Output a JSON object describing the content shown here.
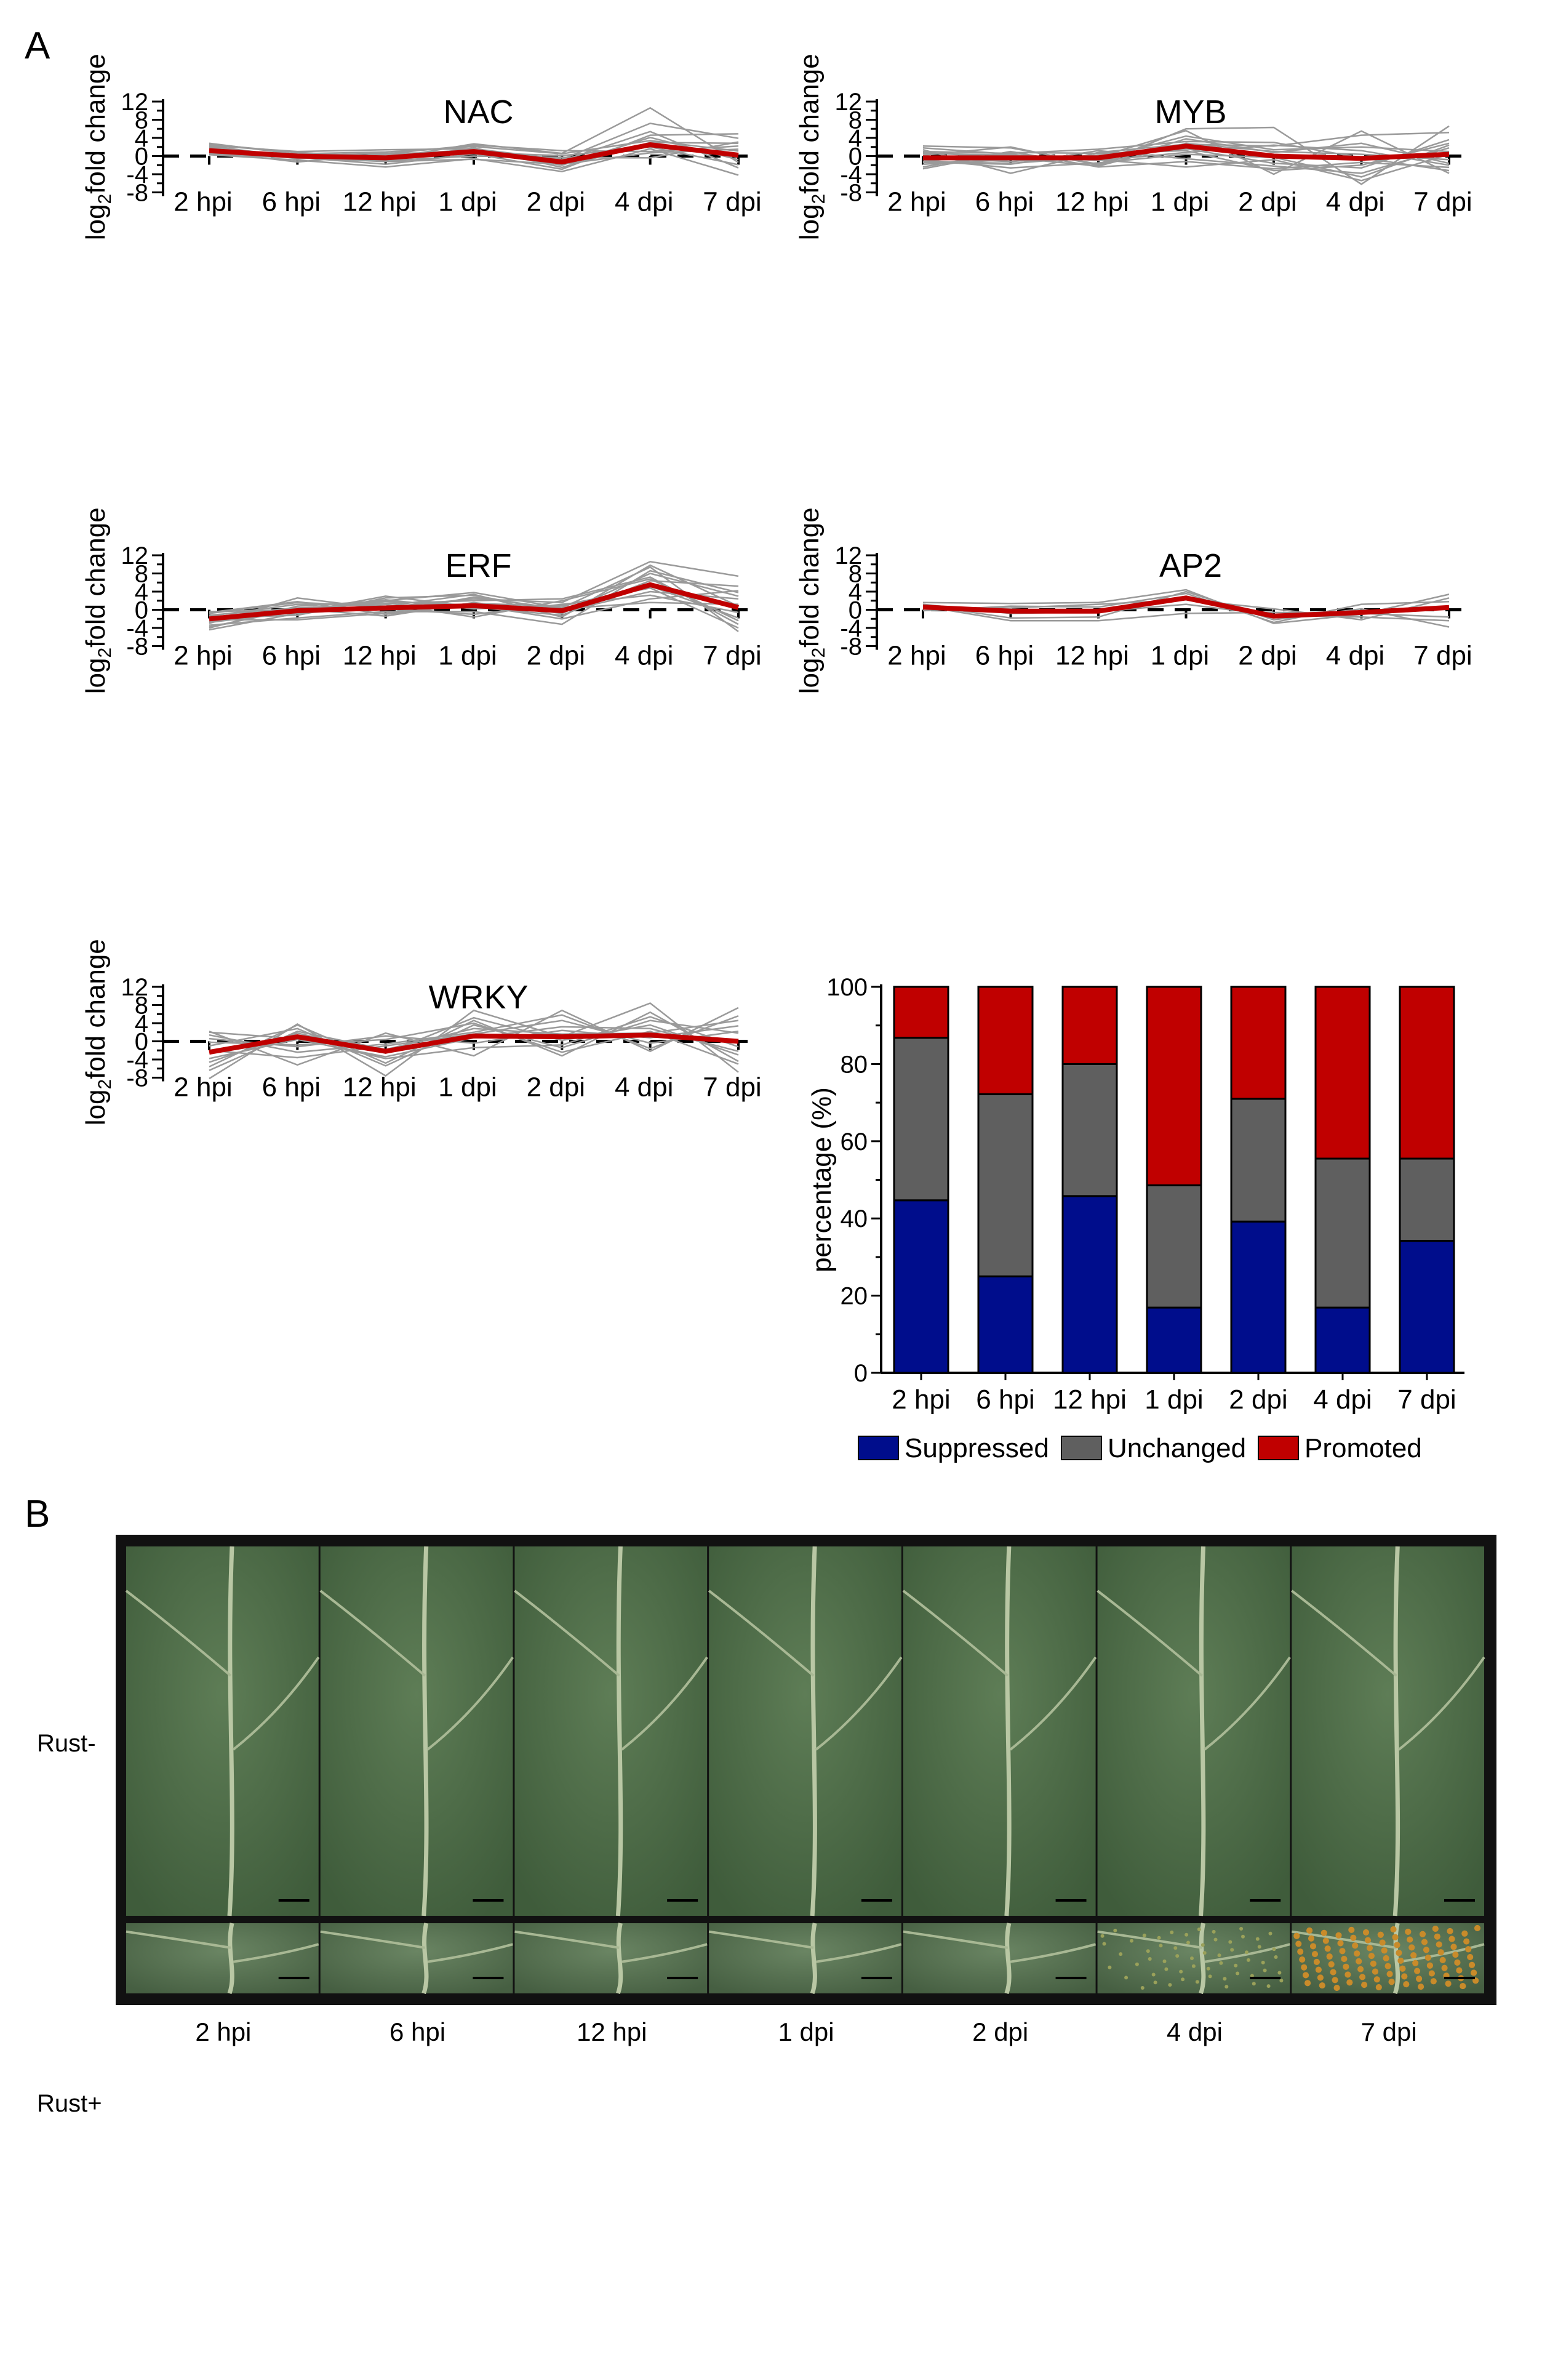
{
  "panel_a_label": "A",
  "panel_b_label": "B",
  "chart_data": [
    {
      "type": "line",
      "title": "NAC",
      "categories": [
        "2 hpi",
        "6 hpi",
        "12 hpi",
        "1 dpi",
        "2 dpi",
        "4 dpi",
        "7 dpi"
      ],
      "ylabel": "log2fold change",
      "ylabel_main": "log",
      "ylabel_sub": "2",
      "ylabel_rest": "fold change",
      "yticks": [
        "12",
        "8",
        "4",
        "0",
        "-4",
        "-8"
      ],
      "ylim": [
        -8,
        12
      ],
      "mean_series": {
        "name": "mean",
        "color": "#c00000",
        "values": [
          1.2,
          0.0,
          -0.4,
          1.0,
          -1.3,
          2.5,
          0.2
        ]
      },
      "series": [
        [
          2.8,
          0.4,
          -0.6,
          2.7,
          0.6,
          10.6,
          -1.4
        ],
        [
          2.3,
          1.0,
          1.4,
          1.6,
          -0.7,
          7.2,
          3.9
        ],
        [
          1.8,
          -0.3,
          -1.8,
          0.5,
          -2.9,
          4.6,
          4.9
        ],
        [
          0.3,
          -0.9,
          -2.4,
          -0.6,
          -3.4,
          1.6,
          -4.2
        ],
        [
          0.7,
          0.5,
          0.9,
          2.1,
          0.5,
          3.4,
          1.1
        ],
        [
          2.0,
          -0.6,
          0.2,
          1.4,
          -1.0,
          5.4,
          -2.6
        ],
        [
          1.5,
          0.2,
          -1.0,
          0.0,
          -0.3,
          -0.4,
          3.1
        ],
        [
          1.0,
          -1.3,
          0.5,
          2.4,
          1.2,
          1.0,
          2.2
        ],
        [
          2.6,
          0.8,
          -0.2,
          1.0,
          -2.0,
          4.1,
          -0.8
        ],
        [
          0.5,
          -0.4,
          -1.2,
          -0.7,
          -1.8,
          0.7,
          1.5
        ],
        [
          1.4,
          0.1,
          0.6,
          0.8,
          0.1,
          2.0,
          -1.9
        ],
        [
          2.2,
          -0.2,
          -0.9,
          1.8,
          -2.5,
          3.0,
          2.8
        ]
      ]
    },
    {
      "type": "line",
      "title": "MYB",
      "categories": [
        "2 hpi",
        "6 hpi",
        "12 hpi",
        "1 dpi",
        "2 dpi",
        "4 dpi",
        "7 dpi"
      ],
      "ylabel": "log2fold change",
      "ylabel_main": "log",
      "ylabel_sub": "2",
      "ylabel_rest": "fold change",
      "yticks": [
        "12",
        "8",
        "4",
        "0",
        "-4",
        "-8"
      ],
      "ylim": [
        -8,
        12
      ],
      "mean_series": {
        "name": "mean",
        "color": "#c00000",
        "values": [
          -0.4,
          -0.4,
          -0.4,
          2.2,
          0.0,
          -0.5,
          0.4
        ]
      },
      "series": [
        [
          2.2,
          1.8,
          -1.8,
          6.0,
          6.3,
          -6.2,
          6.6
        ],
        [
          -1.2,
          -1.6,
          -0.2,
          5.6,
          -4.0,
          5.5,
          -3.8
        ],
        [
          1.4,
          -3.8,
          0.8,
          2.6,
          2.2,
          4.6,
          5.2
        ],
        [
          -2.4,
          1.0,
          -2.4,
          -1.2,
          -2.8,
          -1.4,
          -2.5
        ],
        [
          0.6,
          0.2,
          -0.6,
          4.4,
          1.4,
          2.0,
          1.0
        ],
        [
          -0.8,
          -2.6,
          -1.5,
          0.4,
          -0.3,
          -4.6,
          2.4
        ],
        [
          1.0,
          0.6,
          1.5,
          3.2,
          3.0,
          -0.4,
          -3.2
        ],
        [
          -1.8,
          -0.8,
          -0.8,
          -2.4,
          -0.8,
          -5.4,
          0.4
        ],
        [
          0.2,
          2.0,
          -2.0,
          3.8,
          0.8,
          2.8,
          -1.6
        ],
        [
          -0.4,
          -1.2,
          0.2,
          1.6,
          -1.6,
          -2.6,
          3.6
        ],
        [
          1.8,
          0.4,
          -1.0,
          0.8,
          2.4,
          1.2,
          -2.0
        ],
        [
          -1.4,
          -1.8,
          1.2,
          -0.6,
          -2.2,
          -3.8,
          1.8
        ],
        [
          0.8,
          -0.4,
          -2.2,
          2.8,
          1.0,
          0.4,
          -0.8
        ],
        [
          -2.8,
          0.8,
          0.6,
          1.2,
          -3.2,
          -2.0,
          2.8
        ]
      ]
    },
    {
      "type": "line",
      "title": "ERF",
      "categories": [
        "2 hpi",
        "6 hpi",
        "12 hpi",
        "1 dpi",
        "2 dpi",
        "4 dpi",
        "7 dpi"
      ],
      "ylabel": "log2fold change",
      "ylabel_main": "log",
      "ylabel_sub": "2",
      "ylabel_rest": "fold change",
      "yticks": [
        "12",
        "8",
        "4",
        "0",
        "-4",
        "-8"
      ],
      "ylim": [
        -8,
        12
      ],
      "mean_series": {
        "name": "mean",
        "color": "#c00000",
        "values": [
          -2.0,
          -0.2,
          0.4,
          0.9,
          -0.2,
          5.5,
          0.5
        ]
      },
      "series": [
        [
          -4.4,
          -0.8,
          0.6,
          2.4,
          1.6,
          10.6,
          7.4
        ],
        [
          -4.0,
          0.8,
          2.0,
          3.8,
          0.4,
          9.4,
          -4.8
        ],
        [
          -3.4,
          -1.8,
          -0.4,
          -0.4,
          -3.2,
          8.6,
          3.8
        ],
        [
          -1.2,
          0.4,
          1.4,
          2.0,
          2.4,
          7.2,
          -3.2
        ],
        [
          -2.6,
          -0.6,
          3.0,
          0.6,
          -1.2,
          6.4,
          5.2
        ],
        [
          -0.6,
          1.8,
          -1.0,
          1.4,
          0.8,
          5.2,
          -1.8
        ],
        [
          -1.8,
          -1.2,
          2.6,
          3.2,
          -0.4,
          4.0,
          2.4
        ],
        [
          -3.0,
          2.6,
          0.2,
          -1.0,
          1.2,
          3.2,
          -0.6
        ],
        [
          -0.4,
          0.0,
          1.8,
          1.0,
          -2.0,
          2.4,
          4.2
        ],
        [
          -2.2,
          -2.2,
          -0.8,
          2.8,
          0.2,
          1.6,
          1.2
        ],
        [
          -1.4,
          1.2,
          1.2,
          -1.6,
          2.0,
          6.8,
          -2.4
        ],
        [
          -3.8,
          0.2,
          -1.4,
          1.6,
          -0.8,
          8.0,
          3.0
        ],
        [
          -2.8,
          -0.4,
          2.2,
          0.2,
          1.0,
          4.8,
          -4.0
        ],
        [
          -0.8,
          1.6,
          0.8,
          3.4,
          -1.6,
          9.8,
          0.8
        ]
      ]
    },
    {
      "type": "line",
      "title": "AP2",
      "categories": [
        "2 hpi",
        "6 hpi",
        "12 hpi",
        "1 dpi",
        "2 dpi",
        "4 dpi",
        "7 dpi"
      ],
      "ylabel": "log2fold change",
      "ylabel_main": "log",
      "ylabel_sub": "2",
      "ylabel_rest": "fold change",
      "yticks": [
        "12",
        "8",
        "4",
        "0",
        "-4",
        "-8"
      ],
      "ylim": [
        -8,
        12
      ],
      "mean_series": {
        "name": "mean",
        "color": "#c00000",
        "values": [
          0.6,
          -0.3,
          -0.3,
          2.6,
          -1.4,
          -0.6,
          0.5
        ]
      },
      "series": [
        [
          1.6,
          1.4,
          1.6,
          4.4,
          -3.0,
          -1.0,
          3.4
        ],
        [
          1.0,
          -1.8,
          -1.6,
          4.0,
          -2.2,
          0.2,
          -3.8
        ],
        [
          0.2,
          0.4,
          1.2,
          2.2,
          0.2,
          -2.2,
          2.6
        ],
        [
          0.8,
          -2.4,
          -2.4,
          -0.8,
          -0.6,
          -0.8,
          -1.6
        ],
        [
          -0.2,
          0.8,
          0.6,
          3.6,
          -2.8,
          1.2,
          1.8
        ],
        [
          1.2,
          -0.8,
          -0.4,
          1.2,
          -1.2,
          -1.6,
          -2.4
        ]
      ]
    },
    {
      "type": "line",
      "title": "WRKY",
      "categories": [
        "2 hpi",
        "6 hpi",
        "12 hpi",
        "1 dpi",
        "2 dpi",
        "4 dpi",
        "7 dpi"
      ],
      "ylabel": "log2fold change",
      "ylabel_main": "log",
      "ylabel_sub": "2",
      "ylabel_rest": "fold change",
      "yticks": [
        "12",
        "8",
        "4",
        "0",
        "-4",
        "-8"
      ],
      "ylim": [
        -8,
        12
      ],
      "mean_series": {
        "name": "mean",
        "color": "#c00000",
        "values": [
          -2.4,
          1.0,
          -2.2,
          1.2,
          1.0,
          1.4,
          0.0
        ]
      },
      "series": [
        [
          -8.2,
          3.8,
          -7.6,
          6.8,
          1.0,
          8.4,
          -6.8
        ],
        [
          2.2,
          -5.2,
          1.8,
          -3.2,
          6.8,
          -2.2,
          7.4
        ],
        [
          -5.6,
          3.6,
          -4.8,
          4.6,
          -3.2,
          6.4,
          -4.4
        ],
        [
          1.4,
          -2.4,
          -0.6,
          2.0,
          5.8,
          -1.6,
          5.6
        ],
        [
          -3.8,
          0.4,
          -3.4,
          0.8,
          3.2,
          2.8,
          -2.2
        ],
        [
          -1.0,
          2.8,
          -5.4,
          3.6,
          -1.4,
          4.6,
          1.8
        ],
        [
          0.6,
          -1.2,
          1.2,
          -0.4,
          2.4,
          0.8,
          3.4
        ],
        [
          -4.6,
          1.8,
          -2.6,
          5.2,
          0.2,
          3.6,
          -3.0
        ],
        [
          -2.0,
          -3.6,
          -1.0,
          1.6,
          4.6,
          -0.4,
          2.2
        ],
        [
          2.0,
          0.6,
          -3.8,
          -1.4,
          -0.8,
          5.4,
          -1.2
        ],
        [
          -6.4,
          2.2,
          -1.8,
          2.8,
          1.6,
          1.8,
          4.6
        ],
        [
          -0.2,
          -0.8,
          0.4,
          4.0,
          -2.4,
          2.2,
          -5.0
        ]
      ]
    },
    {
      "type": "bar",
      "stacked": true,
      "categories": [
        "2 hpi",
        "6 hpi",
        "12 hpi",
        "1 dpi",
        "2 dpi",
        "4 dpi",
        "7 dpi"
      ],
      "ylabel": "percentage (%)",
      "yticks": [
        "100",
        "80",
        "60",
        "40",
        "20",
        "0"
      ],
      "ylim": [
        0,
        100
      ],
      "series": [
        {
          "name": "Suppressed",
          "color": "#000d8c",
          "values": [
            44.7,
            25.0,
            45.8,
            16.9,
            39.2,
            16.9,
            34.2
          ]
        },
        {
          "name": "Unchanged",
          "color": "#5f5f5f",
          "values": [
            42.1,
            47.2,
            34.2,
            31.7,
            31.8,
            38.6,
            21.3
          ]
        },
        {
          "name": "Promoted",
          "color": "#c00000",
          "values": [
            13.2,
            27.8,
            20.0,
            51.4,
            29.0,
            44.5,
            44.5
          ]
        }
      ],
      "legend": "bottom"
    }
  ],
  "photo_panel": {
    "row_labels": [
      "Rust-",
      "Rust+"
    ],
    "column_labels": [
      "2 hpi",
      "6 hpi",
      "12 hpi",
      "1 dpi",
      "2 dpi",
      "4 dpi",
      "7 dpi"
    ]
  }
}
